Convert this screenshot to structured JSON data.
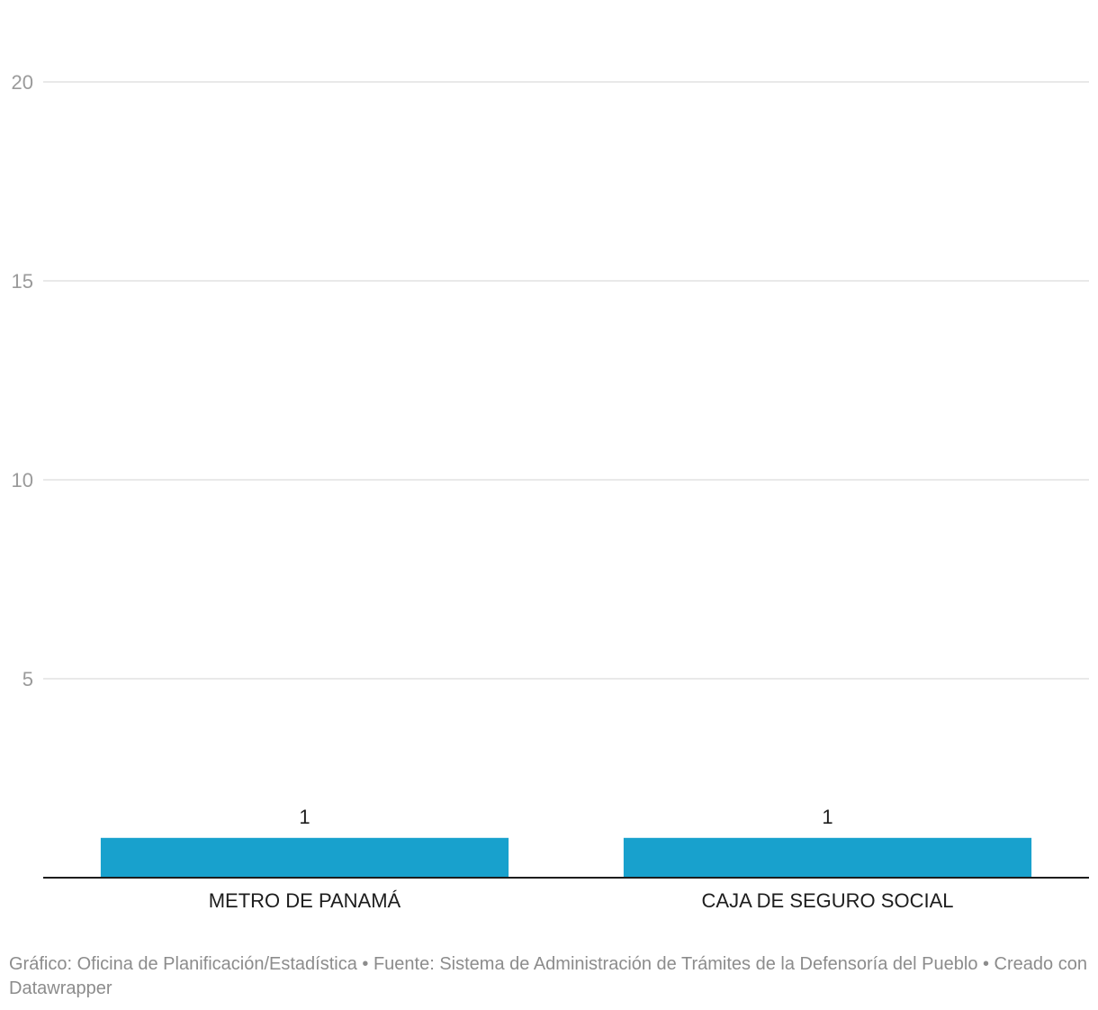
{
  "chart_data": {
    "type": "bar",
    "categories": [
      "METRO DE PANAMÁ",
      "CAJA DE SEGURO SOCIAL"
    ],
    "values": [
      1,
      1
    ],
    "value_labels": [
      "1",
      "1"
    ],
    "ylim": [
      0,
      20
    ],
    "yticks": [
      5,
      10,
      15,
      20
    ],
    "ytick_labels": [
      "5",
      "10",
      "15",
      "20"
    ],
    "grid": true,
    "bar_color": "#18a1cd"
  },
  "footer": {
    "text": "Gráfico: Oficina de Planificación/Estadística • Fuente: Sistema de Administración de Trámites de la Defensoría del Pueblo • Creado con Datawrapper"
  }
}
